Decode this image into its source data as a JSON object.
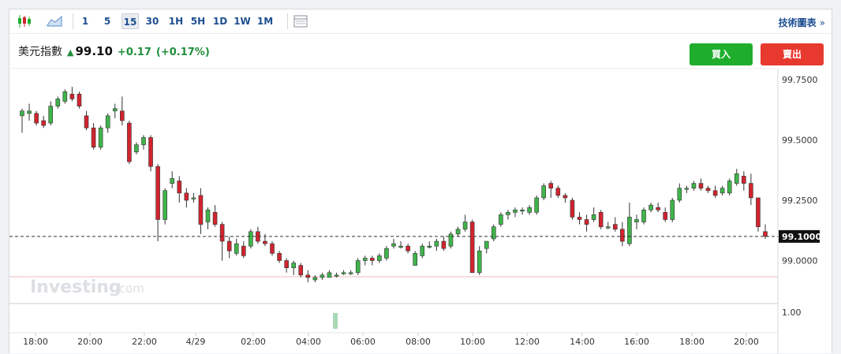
{
  "toolbar": {
    "icons": [
      "candlestick-icon",
      "area-chart-icon",
      "table-icon"
    ],
    "intervals": [
      "1",
      "5",
      "15",
      "30",
      "1H",
      "5H",
      "1D",
      "1W",
      "1M"
    ],
    "active_interval": "15",
    "technical_link": "技術圖表",
    "technical_chevron": "»"
  },
  "quote": {
    "name": "美元指數",
    "price": "99.10",
    "change": "+0.17",
    "change_pct": "(+0.17%)",
    "direction": "up"
  },
  "actions": {
    "buy": "買入",
    "sell": "賣出"
  },
  "watermark": {
    "brand": "Investing",
    "suffix": ".com"
  },
  "colors": {
    "up": "#3fb44a",
    "down": "#d1242f",
    "buy": "#1fae2c",
    "sell": "#e8392f",
    "link": "#1d4f91",
    "volume": "#a9d8b4"
  },
  "chart_data": {
    "type": "candlestick",
    "y_axis": {
      "ticks": [
        "99.7500",
        "99.5000",
        "99.2500",
        "99.0000"
      ],
      "tick_values": [
        99.75,
        99.5,
        99.25,
        99.0
      ],
      "range": [
        98.85,
        99.78
      ]
    },
    "x_axis": {
      "ticks": [
        "18:00",
        "20:00",
        "22:00",
        "4/29",
        "02:00",
        "04:00",
        "06:00",
        "08:00",
        "10:00",
        "12:00",
        "14:00",
        "16:00",
        "18:00",
        "20:00"
      ]
    },
    "current_price_label": "99.1000",
    "current_price": 99.1,
    "volume_axis_label": "1.00",
    "volume_bar_value": 1.0,
    "candles_ohlc": [
      [
        99.6,
        99.63,
        99.53,
        99.62
      ],
      [
        99.61,
        99.65,
        99.58,
        99.62
      ],
      [
        99.61,
        99.62,
        99.56,
        99.57
      ],
      [
        99.58,
        99.6,
        99.55,
        99.56
      ],
      [
        99.57,
        99.66,
        99.56,
        99.64
      ],
      [
        99.64,
        99.68,
        99.63,
        99.67
      ],
      [
        99.66,
        99.71,
        99.65,
        99.7
      ],
      [
        99.69,
        99.72,
        99.66,
        99.67
      ],
      [
        99.69,
        99.7,
        99.63,
        99.64
      ],
      [
        99.6,
        99.62,
        99.54,
        99.55
      ],
      [
        99.55,
        99.57,
        99.46,
        99.47
      ],
      [
        99.47,
        99.56,
        99.46,
        99.55
      ],
      [
        99.55,
        99.61,
        99.53,
        99.6
      ],
      [
        99.62,
        99.65,
        99.59,
        99.63
      ],
      [
        99.62,
        99.68,
        99.56,
        99.58
      ],
      [
        99.57,
        99.58,
        99.4,
        99.41
      ],
      [
        99.45,
        99.49,
        99.44,
        99.48
      ],
      [
        99.48,
        99.52,
        99.46,
        99.51
      ],
      [
        99.51,
        99.52,
        99.37,
        99.39
      ],
      [
        99.39,
        99.4,
        99.08,
        99.17
      ],
      [
        99.17,
        99.3,
        99.15,
        99.29
      ],
      [
        99.32,
        99.37,
        99.3,
        99.34
      ],
      [
        99.33,
        99.35,
        99.24,
        99.28
      ],
      [
        99.28,
        99.3,
        99.22,
        99.25
      ],
      [
        99.26,
        99.28,
        99.24,
        99.26
      ],
      [
        99.27,
        99.3,
        99.11,
        99.15
      ],
      [
        99.16,
        99.22,
        99.13,
        99.21
      ],
      [
        99.2,
        99.23,
        99.14,
        99.15
      ],
      [
        99.15,
        99.16,
        99.0,
        99.08
      ],
      [
        99.08,
        99.1,
        99.01,
        99.04
      ],
      [
        99.03,
        99.09,
        99.02,
        99.07
      ],
      [
        99.06,
        99.08,
        99.01,
        99.02
      ],
      [
        99.06,
        99.13,
        99.05,
        99.12
      ],
      [
        99.12,
        99.14,
        99.07,
        99.08
      ],
      [
        99.08,
        99.11,
        99.06,
        99.07
      ],
      [
        99.07,
        99.08,
        99.02,
        99.03
      ],
      [
        99.03,
        99.04,
        98.99,
        99.0
      ],
      [
        99.0,
        99.01,
        98.95,
        98.97
      ],
      [
        98.97,
        99.0,
        98.94,
        98.99
      ],
      [
        98.98,
        98.99,
        98.93,
        98.94
      ],
      [
        98.94,
        98.96,
        98.91,
        98.93
      ],
      [
        98.92,
        98.94,
        98.91,
        98.93
      ],
      [
        98.93,
        98.95,
        98.92,
        98.94
      ],
      [
        98.93,
        98.96,
        98.93,
        98.95
      ],
      [
        98.94,
        98.95,
        98.93,
        98.94
      ],
      [
        98.95,
        98.96,
        98.94,
        98.95
      ],
      [
        98.95,
        98.96,
        98.94,
        98.95
      ],
      [
        98.95,
        99.01,
        98.94,
        99.0
      ],
      [
        99.0,
        99.02,
        98.98,
        99.01
      ],
      [
        99.01,
        99.02,
        98.98,
        99.0
      ],
      [
        99.0,
        99.03,
        98.99,
        99.02
      ],
      [
        99.01,
        99.06,
        99.0,
        99.05
      ],
      [
        99.06,
        99.09,
        99.05,
        99.07
      ],
      [
        99.06,
        99.08,
        99.05,
        99.06
      ],
      [
        99.06,
        99.07,
        99.03,
        99.04
      ],
      [
        98.98,
        99.04,
        98.98,
        99.03
      ],
      [
        99.02,
        99.07,
        99.01,
        99.06
      ],
      [
        99.06,
        99.08,
        99.05,
        99.06
      ],
      [
        99.06,
        99.09,
        99.04,
        99.08
      ],
      [
        99.08,
        99.1,
        99.04,
        99.05
      ],
      [
        99.06,
        99.12,
        99.05,
        99.11
      ],
      [
        99.11,
        99.14,
        99.1,
        99.13
      ],
      [
        99.13,
        99.19,
        99.12,
        99.16
      ],
      [
        99.16,
        99.17,
        98.95,
        98.95
      ],
      [
        98.95,
        99.06,
        98.94,
        99.04
      ],
      [
        99.05,
        99.08,
        99.03,
        99.08
      ],
      [
        99.09,
        99.15,
        99.08,
        99.14
      ],
      [
        99.15,
        99.2,
        99.14,
        99.19
      ],
      [
        99.19,
        99.21,
        99.17,
        99.2
      ],
      [
        99.2,
        99.22,
        99.18,
        99.21
      ],
      [
        99.21,
        99.22,
        99.19,
        99.21
      ],
      [
        99.2,
        99.23,
        99.19,
        99.22
      ],
      [
        99.2,
        99.27,
        99.19,
        99.26
      ],
      [
        99.26,
        99.32,
        99.25,
        99.31
      ],
      [
        99.32,
        99.33,
        99.26,
        99.3
      ],
      [
        99.3,
        99.31,
        99.26,
        99.27
      ],
      [
        99.27,
        99.28,
        99.24,
        99.26
      ],
      [
        99.25,
        99.26,
        99.17,
        99.18
      ],
      [
        99.18,
        99.2,
        99.15,
        99.17
      ],
      [
        99.17,
        99.19,
        99.12,
        99.15
      ],
      [
        99.17,
        99.22,
        99.16,
        99.19
      ],
      [
        99.2,
        99.21,
        99.13,
        99.14
      ],
      [
        99.14,
        99.16,
        99.13,
        99.14
      ],
      [
        99.15,
        99.18,
        99.12,
        99.13
      ],
      [
        99.13,
        99.16,
        99.06,
        99.08
      ],
      [
        99.07,
        99.24,
        99.06,
        99.18
      ],
      [
        99.16,
        99.19,
        99.13,
        99.17
      ],
      [
        99.16,
        99.22,
        99.15,
        99.21
      ],
      [
        99.21,
        99.24,
        99.2,
        99.23
      ],
      [
        99.22,
        99.24,
        99.2,
        99.21
      ],
      [
        99.2,
        99.22,
        99.16,
        99.17
      ],
      [
        99.17,
        99.26,
        99.16,
        99.25
      ],
      [
        99.25,
        99.32,
        99.24,
        99.3
      ],
      [
        99.3,
        99.31,
        99.28,
        99.3
      ],
      [
        99.3,
        99.33,
        99.29,
        99.32
      ],
      [
        99.32,
        99.34,
        99.29,
        99.3
      ],
      [
        99.3,
        99.31,
        99.28,
        99.29
      ],
      [
        99.29,
        99.31,
        99.26,
        99.27
      ],
      [
        99.28,
        99.31,
        99.27,
        99.3
      ],
      [
        99.28,
        99.34,
        99.27,
        99.33
      ],
      [
        99.32,
        99.38,
        99.31,
        99.36
      ],
      [
        99.35,
        99.37,
        99.29,
        99.32
      ],
      [
        99.32,
        99.36,
        99.23,
        99.26
      ],
      [
        99.26,
        99.26,
        99.12,
        99.14
      ],
      [
        99.12,
        99.15,
        99.09,
        99.1
      ]
    ]
  }
}
